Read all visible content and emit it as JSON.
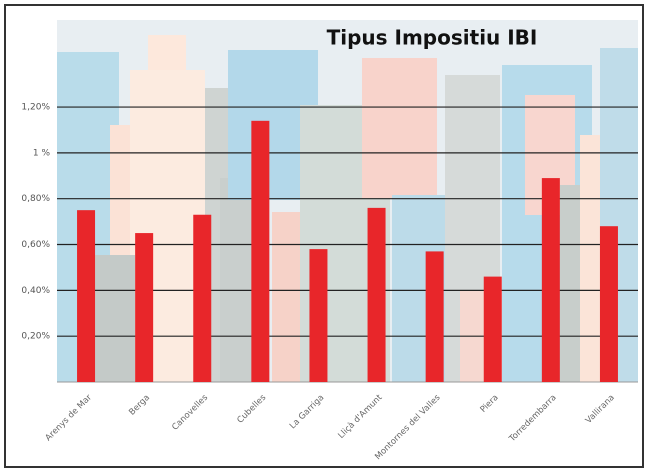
{
  "chart_data": {
    "type": "bar",
    "title": "Tipus Impositiu IBI",
    "categories": [
      "Arenys de Mar",
      "Berga",
      "Canovelles",
      "Cubelles",
      "La Garriga",
      "Lliçà d'Amunt",
      "Montornes del Valles",
      "Piera",
      "Torredembarra",
      "Vallirana"
    ],
    "values": [
      0.75,
      0.65,
      0.73,
      1.14,
      0.58,
      0.76,
      0.57,
      0.46,
      0.89,
      0.68
    ],
    "color": "#e8262a",
    "ylim": [
      0,
      1.58
    ],
    "yticks": [
      {
        "value": 0.2,
        "label": "0,20%"
      },
      {
        "value": 0.4,
        "label": "0,40%"
      },
      {
        "value": 0.6,
        "label": "0,60%"
      },
      {
        "value": 0.8,
        "label": "0,80%"
      },
      {
        "value": 1.0,
        "label": "1 %"
      },
      {
        "value": 1.2,
        "label": "1,20%"
      }
    ],
    "grid": true
  }
}
